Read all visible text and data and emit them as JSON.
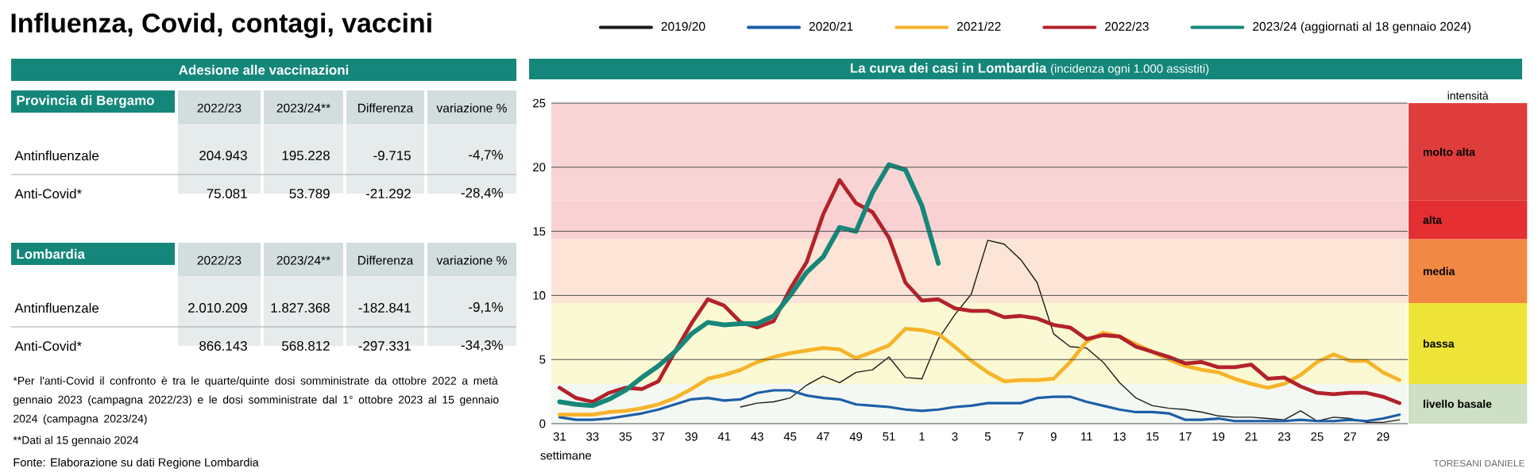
{
  "chart_data": [
    {
      "type": "other",
      "title": "Influenza, Covid, contagi, vaccini",
      "annotations": [
        "Adesione alle vaccinazioni",
        "Provincia di Bergamo",
        "2022/23",
        "2023/24**",
        "Differenza",
        "variazione %",
        "Antinfluenzale",
        "204.943",
        "195.228",
        "-9.715",
        "-4,7%",
        "Anti-Covid*",
        "75.081",
        "53.789",
        "-21.292",
        "-28,4%",
        "Lombardia",
        "2022/23",
        "2023/24**",
        "Differenza",
        "variazione %",
        "Antinfluenzale",
        "2.010.209",
        "1.827.368",
        "-182.841",
        "-9,1%",
        "Anti-Covid*",
        "866.143",
        "568.812",
        "-297.331",
        "-34,3%",
        "*Per l'anti-Covid il confronto è tra le quarte/quinte dosi somministrate da ottobre 2022 a metà gennaio 2023 (campagna 2022/23) e le dosi somministrate dal 1° ottobre 2023 al 15 gennaio 2024 (campagna 2023/24)",
        "**Dati al 15 gennaio 2024",
        "Fonte: Elaborazione su dati Regione Lombardia"
      ]
    },
    {
      "type": "line",
      "title": "La curva dei casi in Lombardia",
      "subtitle": "(incidenza ogni 1.000 assistiti)",
      "xlabel": "settimane",
      "categories": [
        "31",
        null,
        "33",
        null,
        "35",
        null,
        "37",
        null,
        "39",
        null,
        "41",
        null,
        "43",
        null,
        "45",
        null,
        "47",
        null,
        "49",
        null,
        "51",
        null,
        "1",
        null,
        "3",
        null,
        "5",
        null,
        "7",
        null,
        "9",
        null,
        "11",
        null,
        "13",
        null,
        "15",
        null,
        "17",
        null,
        "19",
        null,
        "21",
        null,
        "23",
        null,
        "25",
        null,
        "27",
        null,
        "29",
        null
      ],
      "series": [
        {
          "name": "2019/20",
          "color": "#1a1a1a",
          "values": [
            null,
            null,
            null,
            null,
            null,
            null,
            null,
            null,
            null,
            null,
            null,
            1.3,
            1.6,
            1.7,
            2.0,
            3.0,
            3.7,
            3.2,
            4.0,
            4.2,
            5.2,
            3.6,
            3.5,
            6.6,
            8.5,
            10.1,
            14.3,
            14.0,
            12.8,
            11.0,
            7.0,
            6.0,
            5.9,
            4.8,
            3.2,
            2.0,
            1.4,
            1.2,
            1.1,
            0.9,
            0.6,
            0.5,
            0.5,
            0.4,
            0.3,
            1.0,
            0.2,
            0.5,
            0.4,
            0.1,
            0.1,
            0.3
          ]
        },
        {
          "name": "2020/21",
          "color": "#1c5ea8",
          "values": [
            0.5,
            0.3,
            0.3,
            0.4,
            0.6,
            0.8,
            1.1,
            1.5,
            1.9,
            2.0,
            1.8,
            1.9,
            2.4,
            2.6,
            2.6,
            2.2,
            2.0,
            1.9,
            1.5,
            1.4,
            1.3,
            1.1,
            1.0,
            1.1,
            1.3,
            1.4,
            1.6,
            1.6,
            1.6,
            2.0,
            2.1,
            2.1,
            1.7,
            1.4,
            1.1,
            0.9,
            0.9,
            0.8,
            0.3,
            0.3,
            0.4,
            0.2,
            0.2,
            0.2,
            0.2,
            0.3,
            0.2,
            0.2,
            0.3,
            0.2,
            0.4,
            0.7
          ]
        },
        {
          "name": "2021/22",
          "color": "#f6b42a",
          "values": [
            0.7,
            0.7,
            0.7,
            0.9,
            1.0,
            1.2,
            1.5,
            2.0,
            2.7,
            3.5,
            3.8,
            4.2,
            4.8,
            5.2,
            5.5,
            5.7,
            5.9,
            5.8,
            5.1,
            5.6,
            6.1,
            7.4,
            7.3,
            7.0,
            6.0,
            4.9,
            4.0,
            3.3,
            3.4,
            3.4,
            3.5,
            4.8,
            6.4,
            7.1,
            6.8,
            6.2,
            5.6,
            5.0,
            4.5,
            4.2,
            4.0,
            3.5,
            3.1,
            2.8,
            3.1,
            3.8,
            4.8,
            5.4,
            4.9,
            4.9,
            4.0,
            3.4
          ]
        },
        {
          "name": "2022/23",
          "color": "#b2222a",
          "values": [
            2.8,
            2.0,
            1.7,
            2.4,
            2.8,
            2.7,
            3.3,
            5.6,
            7.8,
            9.7,
            9.2,
            7.9,
            7.5,
            8.0,
            10.5,
            12.6,
            16.3,
            19.0,
            17.2,
            16.5,
            14.5,
            11.0,
            9.6,
            9.7,
            9.0,
            8.8,
            8.8,
            8.3,
            8.4,
            8.2,
            7.7,
            7.5,
            6.6,
            6.9,
            6.8,
            6.0,
            5.6,
            5.2,
            4.7,
            4.8,
            4.4,
            4.4,
            4.6,
            3.5,
            3.6,
            2.9,
            2.4,
            2.3,
            2.4,
            2.4,
            2.1,
            1.6
          ]
        },
        {
          "name": "2023/24 (aggiornati al 18 gennaio 2024)",
          "color": "#17877a",
          "values": [
            1.7,
            1.5,
            1.4,
            1.9,
            2.6,
            3.6,
            4.5,
            5.6,
            7.0,
            7.9,
            7.7,
            7.8,
            7.8,
            8.4,
            10.0,
            11.8,
            13.0,
            15.3,
            15.0,
            18.0,
            20.2,
            19.8,
            17.0,
            12.5,
            null,
            null,
            null,
            null,
            null,
            null,
            null,
            null,
            null,
            null,
            null,
            null,
            null,
            null,
            null,
            null,
            null,
            null,
            null,
            null,
            null,
            null,
            null,
            null,
            null,
            null,
            null,
            null
          ]
        }
      ],
      "ylim": [
        0,
        25
      ],
      "yticks": [
        0,
        5,
        10,
        15,
        20,
        25
      ],
      "grid": "y",
      "legend": "top",
      "bands": [
        {
          "axis": "y",
          "from": 0,
          "to": 3.1,
          "label": "livello basale",
          "color": "#f4f8f2"
        },
        {
          "axis": "y",
          "from": 3.1,
          "to": 9.4,
          "label": "bassa",
          "color": "#fbf9d3"
        },
        {
          "axis": "y",
          "from": 9.4,
          "to": 14.4,
          "label": "media",
          "color": "#fce5d6"
        },
        {
          "axis": "y",
          "from": 14.4,
          "to": 17.4,
          "label": "alta",
          "color": "#f9d1d2"
        },
        {
          "axis": "y",
          "from": 17.4,
          "to": 25,
          "label": "molto alta",
          "color": "#f8d4d4"
        }
      ],
      "annotations": [
        "intensità",
        "TORESANI DANIELE"
      ]
    }
  ]
}
